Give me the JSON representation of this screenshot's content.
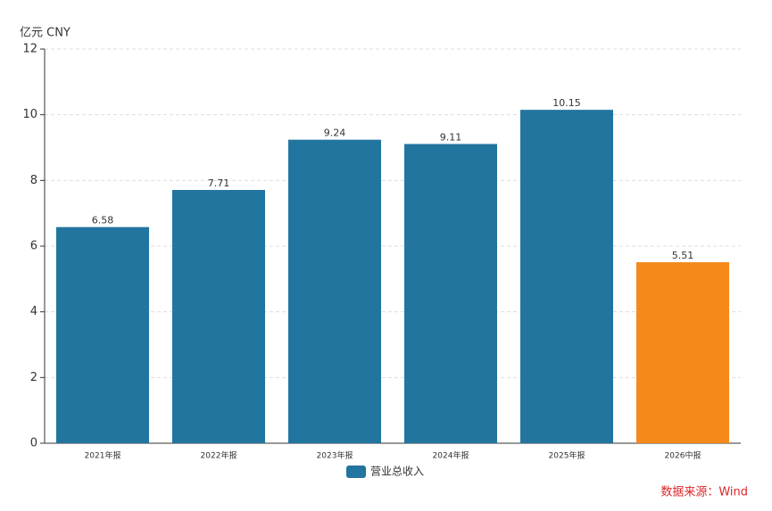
{
  "chart_data": {
    "type": "bar",
    "y_label": "亿元  CNY",
    "categories": [
      "2021年报",
      "2022年报",
      "2023年报",
      "2024年报",
      "2025年报",
      "2026中报"
    ],
    "series": [
      {
        "name": "营业总收入",
        "color": "#21759f",
        "values": [
          6.58,
          7.71,
          9.24,
          9.11,
          10.15,
          5.51
        ],
        "colors": [
          "#21759f",
          "#21759f",
          "#21759f",
          "#21759f",
          "#21759f",
          "#f5891a"
        ]
      }
    ],
    "ylim": [
      0,
      12
    ],
    "yticks": [
      0,
      2,
      4,
      6,
      8,
      10,
      12
    ],
    "grid": true,
    "source": "数据来源：Wind"
  }
}
